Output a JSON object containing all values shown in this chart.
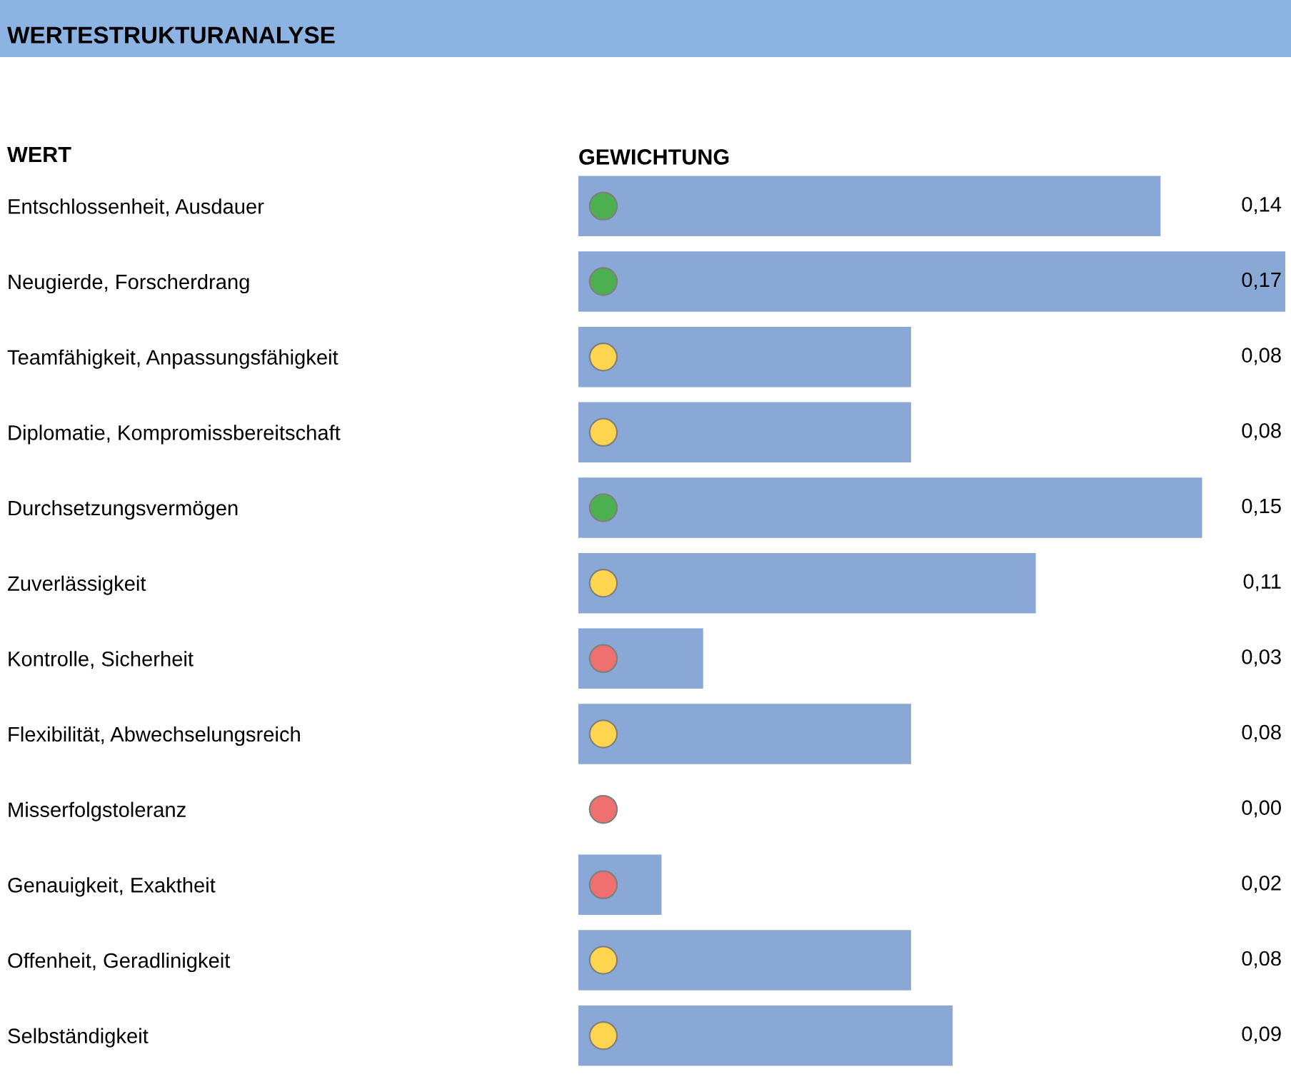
{
  "chart_data": {
    "type": "bar",
    "orientation": "horizontal",
    "title": "WERTESTRUKTURANALYSE",
    "xlabel": "GEWICHTUNG",
    "ylabel": "WERT",
    "legend": false,
    "grid": false,
    "categories": [
      "Entschlossenheit, Ausdauer",
      "Neugierde, Forscherdrang",
      "Teamfähigkeit, Anpassungsfähigkeit",
      "Diplomatie, Kompromissbereitschaft",
      "Durchsetzungsvermögen",
      "Zuverlässigkeit",
      "Kontrolle, Sicherheit",
      "Flexibilität, Abwechselungsreich",
      "Misserfolgstoleranz",
      "Genauigkeit, Exaktheit",
      "Offenheit, Geradlinigkeit",
      "Selbständigkeit"
    ],
    "series": [
      {
        "color": "#8aa8d6",
        "values": [
          0.14,
          0.17,
          0.08,
          0.08,
          0.15,
          0.11,
          0.03,
          0.08,
          0.0,
          0.02,
          0.08,
          0.09
        ],
        "value_labels": [
          "0,14",
          "0,17",
          "0,08",
          "0,08",
          "0,15",
          "0,11",
          "0,03",
          "0,08",
          "0,00",
          "0,02",
          "0,08",
          "0,09"
        ]
      },
      {
        "type": "scatter",
        "marker": "circle",
        "values": [
          0.006,
          0.006,
          0.006,
          0.006,
          0.006,
          0.006,
          0.006,
          0.006,
          0.006,
          0.006,
          0.006,
          0.006
        ],
        "colors": [
          "#4caf50",
          "#4caf50",
          "#ffd54f",
          "#ffd54f",
          "#4caf50",
          "#ffd54f",
          "#f07070",
          "#ffd54f",
          "#f07070",
          "#f07070",
          "#ffd54f",
          "#ffd54f"
        ]
      }
    ]
  }
}
